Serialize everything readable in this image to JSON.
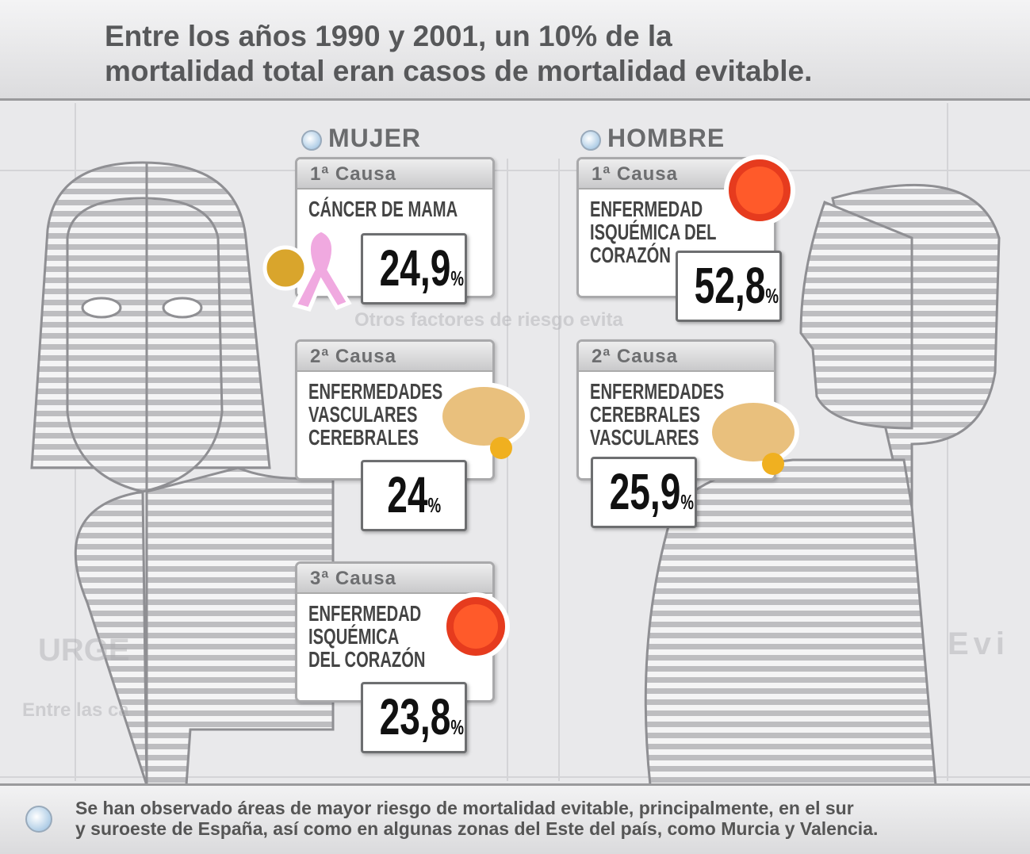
{
  "header": {
    "title_lines": [
      "Entre los años 1990 y 2001, un 10% de la",
      "mortalidad total eran casos de mortalidad evitable."
    ]
  },
  "columns": [
    {
      "label": "MUJER",
      "causes": [
        {
          "rank": "1ª Causa",
          "name_lines": [
            "CÁNCER DE MAMA"
          ],
          "value": "24,9",
          "unit": "%"
        },
        {
          "rank": "2ª Causa",
          "name_lines": [
            "ENFERMEDADES",
            "VASCULARES",
            "CEREBRALES"
          ],
          "value": "24",
          "unit": "%"
        },
        {
          "rank": "3ª Causa",
          "name_lines": [
            "ENFERMEDAD",
            "ISQUÉMICA",
            "DEL CORAZÓN"
          ],
          "value": "23,8",
          "unit": "%"
        }
      ]
    },
    {
      "label": "HOMBRE",
      "causes": [
        {
          "rank": "1ª Causa",
          "name_lines": [
            "ENFERMEDAD",
            "ISQUÉMICA DEL",
            "CORAZÓN"
          ],
          "value": "52,8",
          "unit": "%"
        },
        {
          "rank": "2ª Causa",
          "name_lines": [
            "ENFERMEDADES",
            "CEREBRALES",
            "VASCULARES"
          ],
          "value": "25,9",
          "unit": "%"
        }
      ]
    }
  ],
  "background_texts": [
    "Otros factores de riesgo evita",
    "URGE",
    "Entre las ca",
    "Evi"
  ],
  "footer": {
    "text_lines": [
      "Se han observado áreas de mayor riesgo de mortalidad evitable, principalmente, en el sur",
      "y suroeste de España, así como en algunas zonas del Este del país, como Murcia y Valencia."
    ]
  }
}
